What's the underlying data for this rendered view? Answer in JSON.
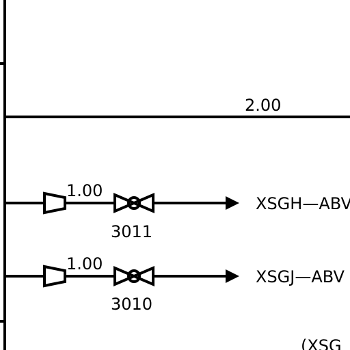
{
  "colors": {
    "line": "#000000",
    "background": "#ffffff"
  },
  "header_line": {
    "size_label": "2.00"
  },
  "branches": [
    {
      "size_label": "1.00",
      "valve_tag": "3011",
      "destination": "XSGH—ABV",
      "reducer_icon": "reducer-icon",
      "valve_icon": "gate-valve-icon",
      "arrow_icon": "flow-arrow-icon"
    },
    {
      "size_label": "1.00",
      "valve_tag": "3010",
      "destination": "XSGJ—ABV",
      "reducer_icon": "reducer-icon",
      "valve_icon": "gate-valve-icon",
      "arrow_icon": "flow-arrow-icon"
    }
  ],
  "partial_note": "(XSG"
}
